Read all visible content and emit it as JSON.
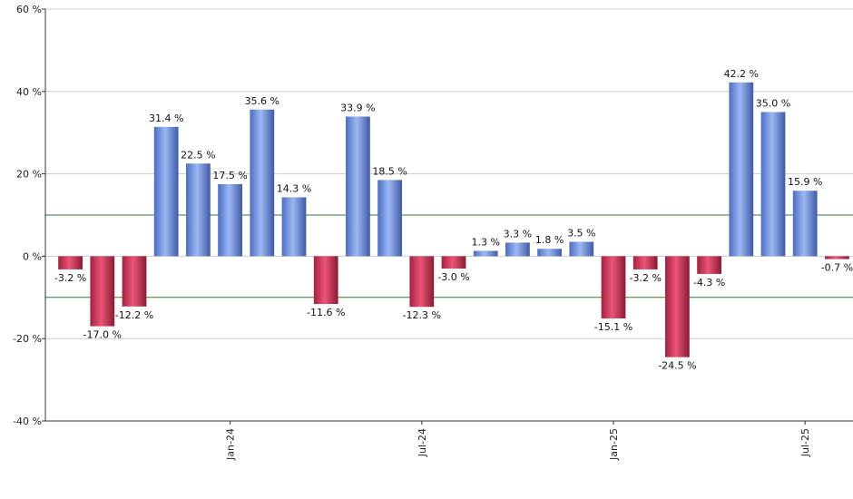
{
  "chart_data": {
    "type": "bar",
    "title": "",
    "xlabel": "",
    "ylabel": "",
    "ylim": [
      -40,
      60
    ],
    "yticks": [
      60,
      40,
      20,
      0,
      -20,
      -40
    ],
    "ytick_labels": [
      "60 %",
      "40 %",
      "20 %",
      "0 %",
      "-20 %",
      "-40 %"
    ],
    "unit_suffix": " %",
    "grid": true,
    "threshold_lines": [
      10,
      -10
    ],
    "x_axis_labels": [
      {
        "label": "Jan-24",
        "index": 5.5
      },
      {
        "label": "Jul-24",
        "index": 11.5
      },
      {
        "label": "Jan-25",
        "index": 17.5
      },
      {
        "label": "Jul-25",
        "index": 23.5
      }
    ],
    "values": [
      -3.2,
      -17.0,
      -12.2,
      31.4,
      22.5,
      17.5,
      35.6,
      14.3,
      -11.6,
      33.9,
      18.5,
      -12.3,
      -3.0,
      1.3,
      3.3,
      1.8,
      3.5,
      -15.1,
      -3.2,
      -24.5,
      -4.3,
      42.2,
      35.0,
      15.9,
      -0.7
    ],
    "data_labels": [
      "-3.2 %",
      "-17.0 %",
      "-12.2 %",
      "31.4 %",
      "22.5 %",
      "17.5 %",
      "35.6 %",
      "14.3 %",
      "-11.6 %",
      "33.9 %",
      "18.5 %",
      "-12.3 %",
      "-3.0 %",
      "1.3 %",
      "3.3 %",
      "1.8 %",
      "3.5 %",
      "-15.1 %",
      "-3.2 %",
      "-24.5 %",
      "-4.3 %",
      "42.2 %",
      "35.0 %",
      "15.9 %",
      "-0.7 %"
    ]
  },
  "colors": {
    "positive": "#7c9ee8",
    "positive_dark": "#3f5aa8",
    "negative": "#e0375a",
    "negative_dark": "#8a1a33",
    "threshold": "#2e7d32",
    "grid": "#cccccc",
    "axis": "#333333"
  }
}
